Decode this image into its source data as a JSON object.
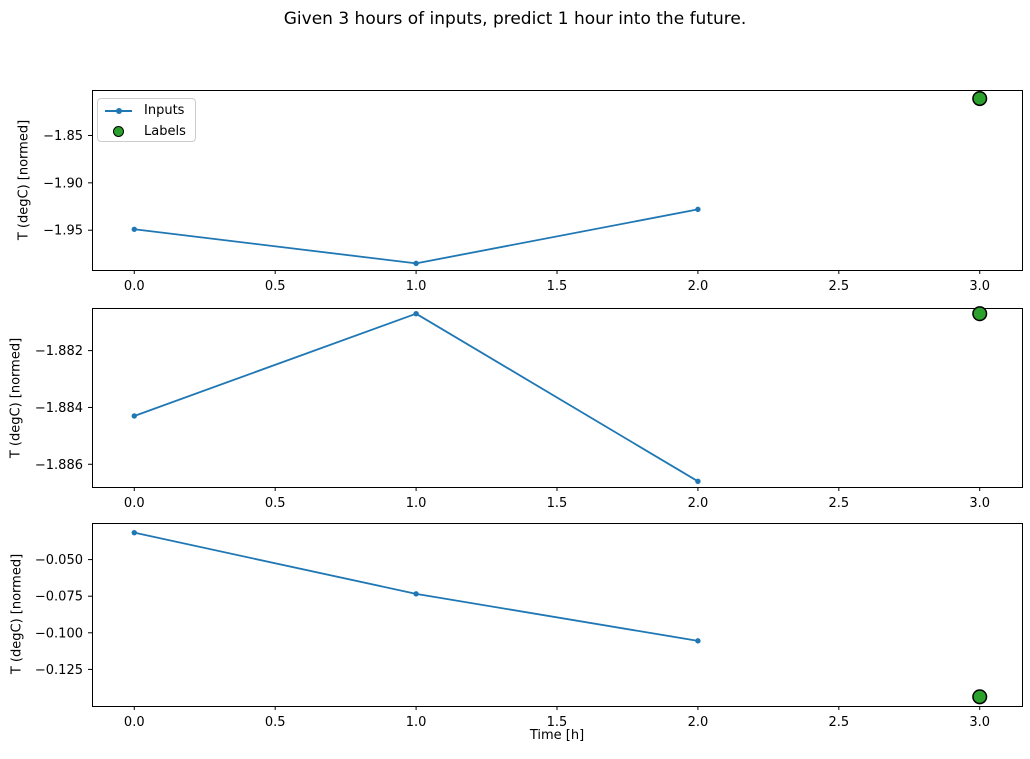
{
  "figure": {
    "background": "#ffffff"
  },
  "chart_data": {
    "type": "line",
    "title": "Given 3 hours of inputs, predict 1 hour into the future.",
    "xlabel": "Time [h]",
    "grid": false,
    "xlim": [
      -0.15,
      3.15
    ],
    "xticks": [
      0,
      0.5,
      1,
      1.5,
      2,
      2.5,
      3
    ],
    "xtick_labels": [
      "0.0",
      "0.5",
      "1.0",
      "1.5",
      "2.0",
      "2.5",
      "3.0"
    ],
    "legend": {
      "position": "upper left",
      "entries": [
        {
          "label": "Inputs",
          "marker": "line-with-dot",
          "color": "#1f77b4"
        },
        {
          "label": "Labels",
          "marker": "circle",
          "color": "#2ca02c"
        }
      ]
    },
    "colors": {
      "inputs_line": "#1f77b4",
      "labels_fill": "#2ca02c",
      "labels_edge": "#000000",
      "axis": "#000000"
    },
    "subplots": [
      {
        "ylabel": "T (degC) [normed]",
        "ylim": [
          -1.992,
          -1.802
        ],
        "yticks": [
          -1.85,
          -1.9,
          -1.95
        ],
        "ytick_labels": [
          "−1.85",
          "−1.90",
          "−1.95"
        ],
        "inputs": {
          "x": [
            0,
            1,
            2
          ],
          "y": [
            -1.949,
            -1.985,
            -1.928
          ]
        },
        "labels": {
          "x": [
            3
          ],
          "y": [
            -1.811
          ]
        }
      },
      {
        "ylabel": "T (degC) [normed]",
        "ylim": [
          -1.8868,
          -1.8805
        ],
        "yticks": [
          -1.882,
          -1.884,
          -1.886
        ],
        "ytick_labels": [
          "−1.882",
          "−1.884",
          "−1.886"
        ],
        "inputs": {
          "x": [
            0,
            1,
            2
          ],
          "y": [
            -1.8843,
            -1.8807,
            -1.8866
          ]
        },
        "labels": {
          "x": [
            3
          ],
          "y": [
            -1.8807
          ]
        }
      },
      {
        "ylabel": "T (degC) [normed]",
        "ylim": [
          -0.15,
          -0.025
        ],
        "yticks": [
          -0.05,
          -0.075,
          -0.1,
          -0.125
        ],
        "ytick_labels": [
          "−0.050",
          "−0.075",
          "−0.100",
          "−0.125"
        ],
        "inputs": {
          "x": [
            0,
            1,
            2
          ],
          "y": [
            -0.0316,
            -0.0734,
            -0.1055
          ]
        },
        "labels": {
          "x": [
            3
          ],
          "y": [
            -0.1437
          ]
        }
      }
    ]
  }
}
